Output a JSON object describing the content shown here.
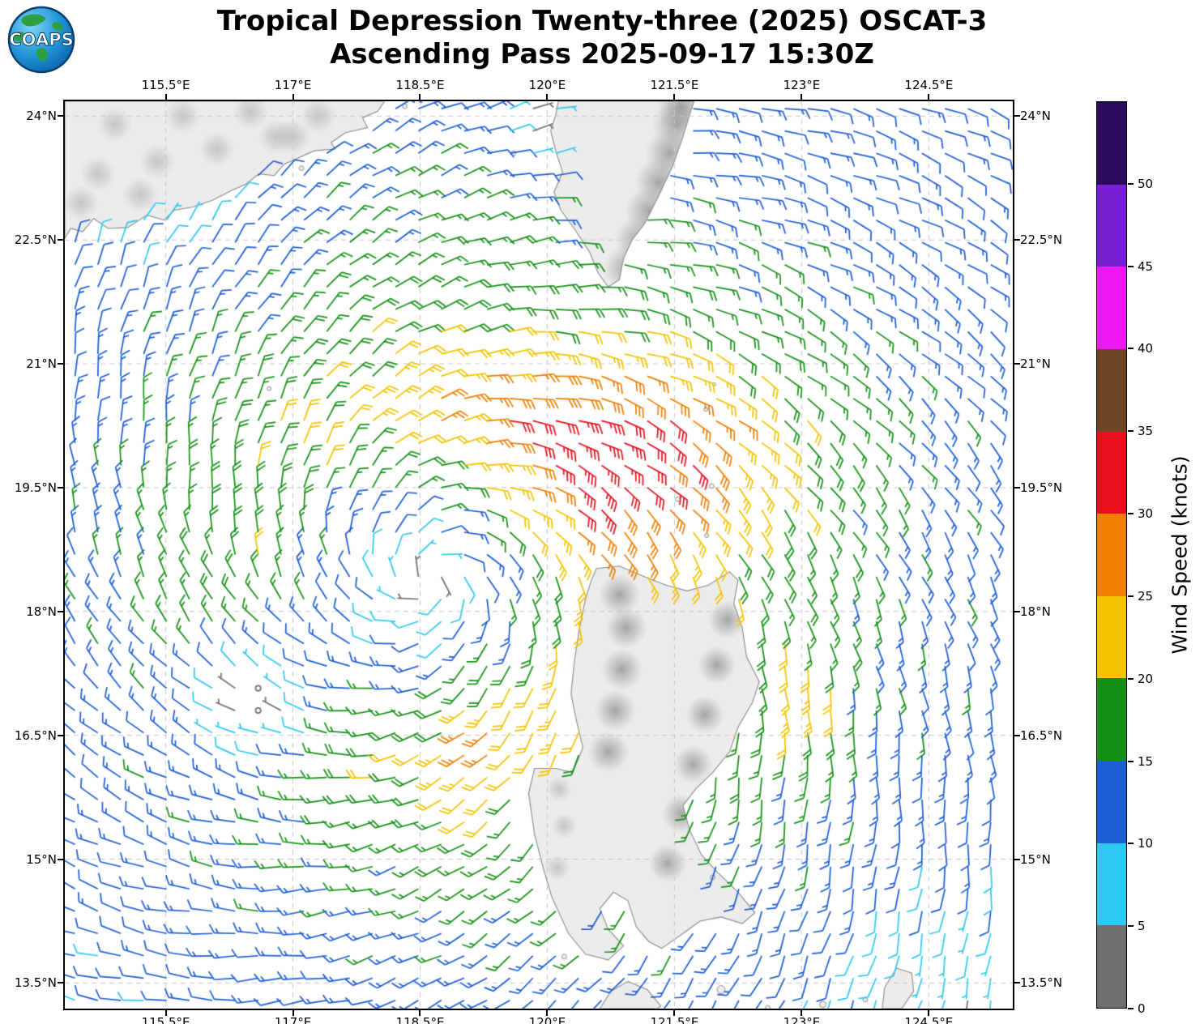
{
  "logo": {
    "text": "COAPS",
    "globe_color": "#1d7fc4",
    "land_color": "#2f9e41"
  },
  "title": {
    "line1": "Tropical Depression Twenty-three (2025) OSCAT-3",
    "line2": "Ascending Pass 2025-09-17 15:30Z"
  },
  "chart_data": {
    "type": "wind_barb_map",
    "projection": "lon-lat",
    "x_axis": {
      "range": [
        114.31,
        125.49
      ],
      "ticks": [
        115.5,
        117,
        118.5,
        120,
        121.5,
        123,
        124.5
      ],
      "tick_labels": [
        "115.5°E",
        "117°E",
        "118.5°E",
        "120°E",
        "121.5°E",
        "123°E",
        "124.5°E"
      ]
    },
    "y_axis": {
      "range": [
        13.19,
        24.18
      ],
      "ticks": [
        24,
        22.5,
        21,
        19.5,
        18,
        16.5,
        15,
        13.5
      ],
      "tick_labels": [
        "24°N",
        "22.5°N",
        "21°N",
        "19.5°N",
        "18°N",
        "16.5°N",
        "15°N",
        "13.5°N"
      ]
    },
    "grid": {
      "visible": true,
      "style": "dashed",
      "color": "#c8c8c8"
    },
    "colorbar": {
      "label": "Wind Speed (knots)",
      "levels": [
        0,
        5,
        10,
        15,
        20,
        25,
        30,
        35,
        40,
        45,
        50,
        55
      ],
      "tick_labels": [
        "0",
        "5",
        "10",
        "15",
        "20",
        "25",
        "30",
        "35",
        "40",
        "45",
        "50"
      ],
      "colors": [
        "#6f6f6f",
        "#2ec9f2",
        "#1c5dd6",
        "#149114",
        "#f5c400",
        "#f07f00",
        "#e8101f",
        "#6e4526",
        "#f018f0",
        "#7a1fd4",
        "#2e0a5e"
      ]
    },
    "wind_field": {
      "description": "OSCAT-3 scatterometer ocean wind barbs (knots); cyclonic circulation of Tropical Depression 23 over the Luzon Strait / South China Sea",
      "storm_center_estimate": {
        "lon": 118.6,
        "lat": 18.4
      },
      "max_wind_region": {
        "lon": [
          120.2,
          121.5
        ],
        "lat": [
          19.4,
          20.4
        ],
        "speed_band_kt": [
          30,
          35
        ]
      },
      "model": {
        "center": [
          118.6,
          18.4
        ],
        "rmax_deg": 2.2,
        "vmax_kt": 22,
        "inner_exp": 0.7,
        "outer_decay_exp": 0.55,
        "inflow_deg": 25,
        "asym": {
          "amp": 0.12,
          "dir_deg": 20
        },
        "jets": [
          {
            "lon": 121.0,
            "lat": 20.0,
            "amp_kt": 12,
            "sx": 1.9,
            "sy": 1.1
          },
          {
            "lon": 123.0,
            "lat": 16.9,
            "amp_kt": 8,
            "sx": 0.5,
            "sy": 0.6
          },
          {
            "lon": 119.1,
            "lat": 16.6,
            "amp_kt": 6,
            "sx": 0.35,
            "sy": 1.0
          }
        ],
        "calm_zones": [
          {
            "lon": 116.6,
            "lat": 16.9,
            "r": 0.75,
            "damp": 0.93
          },
          {
            "lon": 119.95,
            "lat": 23.85,
            "r": 0.55,
            "damp": 0.8
          },
          {
            "lon": 124.7,
            "lat": 13.3,
            "r": 1.3,
            "damp": 0.5
          },
          {
            "lon": 115.6,
            "lat": 22.95,
            "r": 1.0,
            "damp": 0.45
          }
        ],
        "noise": {
          "speed_kt": 1.8,
          "dir_deg": 8
        },
        "grid_step_deg": 0.27,
        "max_display_kt": 34.5
      }
    },
    "geography": {
      "land_fill": "#ececec",
      "coast_color": "#8a8a8a",
      "polygons": {
        "china": [
          [
            114.31,
            24.18
          ],
          [
            118.08,
            24.18
          ],
          [
            118.0,
            24.06
          ],
          [
            117.82,
            23.98
          ],
          [
            117.88,
            23.86
          ],
          [
            117.62,
            23.8
          ],
          [
            117.45,
            23.68
          ],
          [
            117.5,
            23.6
          ],
          [
            117.25,
            23.58
          ],
          [
            117.08,
            23.5
          ],
          [
            116.9,
            23.42
          ],
          [
            116.78,
            23.28
          ],
          [
            116.6,
            23.3
          ],
          [
            116.45,
            23.18
          ],
          [
            116.28,
            23.1
          ],
          [
            116.05,
            22.98
          ],
          [
            115.82,
            22.9
          ],
          [
            115.6,
            22.86
          ],
          [
            115.48,
            22.74
          ],
          [
            115.28,
            22.8
          ],
          [
            115.05,
            22.65
          ],
          [
            114.82,
            22.64
          ],
          [
            114.65,
            22.76
          ],
          [
            114.52,
            22.6
          ],
          [
            114.38,
            22.64
          ],
          [
            114.31,
            22.52
          ]
        ],
        "taiwan": [
          [
            120.72,
            21.93
          ],
          [
            120.6,
            22.1
          ],
          [
            120.5,
            22.35
          ],
          [
            120.33,
            22.62
          ],
          [
            120.16,
            22.86
          ],
          [
            120.08,
            23.08
          ],
          [
            120.18,
            23.32
          ],
          [
            120.1,
            23.58
          ],
          [
            120.04,
            23.82
          ],
          [
            120.1,
            24.02
          ],
          [
            120.13,
            24.18
          ],
          [
            121.73,
            24.18
          ],
          [
            121.68,
            24.02
          ],
          [
            121.6,
            23.75
          ],
          [
            121.48,
            23.4
          ],
          [
            121.32,
            23.05
          ],
          [
            121.15,
            22.7
          ],
          [
            121.0,
            22.5
          ],
          [
            120.9,
            22.28
          ],
          [
            120.85,
            22.02
          ]
        ],
        "luzon": [
          [
            120.58,
            18.52
          ],
          [
            120.85,
            18.55
          ],
          [
            121.15,
            18.42
          ],
          [
            121.4,
            18.32
          ],
          [
            121.65,
            18.25
          ],
          [
            121.9,
            18.32
          ],
          [
            122.15,
            18.48
          ],
          [
            122.25,
            18.38
          ],
          [
            122.2,
            18.1
          ],
          [
            122.3,
            17.8
          ],
          [
            122.35,
            17.45
          ],
          [
            122.5,
            17.15
          ],
          [
            122.42,
            16.9
          ],
          [
            122.25,
            16.6
          ],
          [
            122.15,
            16.3
          ],
          [
            121.95,
            16.05
          ],
          [
            121.75,
            15.85
          ],
          [
            121.6,
            15.65
          ],
          [
            121.68,
            15.35
          ],
          [
            121.82,
            15.05
          ],
          [
            122.0,
            14.85
          ],
          [
            122.25,
            14.6
          ],
          [
            122.45,
            14.35
          ],
          [
            122.3,
            14.22
          ],
          [
            122.05,
            14.3
          ],
          [
            121.8,
            14.25
          ],
          [
            121.6,
            14.1
          ],
          [
            121.35,
            13.92
          ],
          [
            121.2,
            14.0
          ],
          [
            121.05,
            14.18
          ],
          [
            120.95,
            14.5
          ],
          [
            120.78,
            14.6
          ],
          [
            120.62,
            14.4
          ],
          [
            120.72,
            14.15
          ],
          [
            120.9,
            13.95
          ],
          [
            120.72,
            13.78
          ],
          [
            120.45,
            13.85
          ],
          [
            120.25,
            14.1
          ],
          [
            120.05,
            14.55
          ],
          [
            119.95,
            14.9
          ],
          [
            119.85,
            15.3
          ],
          [
            119.78,
            15.8
          ],
          [
            119.85,
            16.1
          ],
          [
            120.1,
            16.1
          ],
          [
            120.3,
            16.05
          ],
          [
            120.42,
            16.35
          ],
          [
            120.35,
            16.65
          ],
          [
            120.28,
            17.0
          ],
          [
            120.32,
            17.4
          ],
          [
            120.38,
            17.8
          ],
          [
            120.45,
            18.15
          ],
          [
            120.52,
            18.38
          ]
        ],
        "mindoro": [
          [
            120.62,
            13.19
          ],
          [
            120.75,
            13.4
          ],
          [
            120.95,
            13.52
          ],
          [
            121.18,
            13.42
          ],
          [
            121.34,
            13.22
          ],
          [
            121.3,
            13.19
          ]
        ],
        "catanduanes": [
          [
            123.95,
            13.19
          ],
          [
            123.98,
            13.45
          ],
          [
            124.12,
            13.68
          ],
          [
            124.3,
            13.62
          ],
          [
            124.32,
            13.4
          ],
          [
            124.18,
            13.19
          ]
        ]
      },
      "islets": [
        [
          119.6,
          23.55,
          3
        ],
        [
          118.32,
          24.12,
          3
        ],
        [
          117.1,
          23.37,
          3
        ],
        [
          116.72,
          20.7,
          2.5
        ],
        [
          121.54,
          19.36,
          3
        ],
        [
          121.94,
          19.52,
          3
        ],
        [
          121.88,
          18.92,
          2.5
        ],
        [
          121.87,
          20.45,
          2.5
        ],
        [
          121.97,
          20.75,
          2
        ],
        [
          121.95,
          14.78,
          3
        ],
        [
          122.05,
          13.42,
          5
        ],
        [
          120.2,
          13.82,
          3
        ],
        [
          123.25,
          13.24,
          4
        ],
        [
          123.75,
          13.3,
          3
        ],
        [
          122.6,
          13.2,
          3
        ]
      ],
      "terrain": {
        "taiwan_ridge": [
          [
            120.95,
            22.15
          ],
          [
            121.08,
            22.5
          ],
          [
            121.2,
            22.85
          ],
          [
            121.32,
            23.2
          ],
          [
            121.44,
            23.55
          ],
          [
            121.52,
            23.9
          ],
          [
            121.58,
            24.12
          ]
        ],
        "luzon_cordillera": [
          [
            120.72,
            16.3
          ],
          [
            120.8,
            16.8
          ],
          [
            120.88,
            17.3
          ],
          [
            120.93,
            17.8
          ],
          [
            120.85,
            18.2
          ]
        ],
        "luzon_sierra_madre": [
          [
            121.42,
            14.95
          ],
          [
            121.58,
            15.55
          ],
          [
            121.72,
            16.15
          ],
          [
            121.86,
            16.75
          ],
          [
            122.0,
            17.35
          ],
          [
            122.12,
            17.9
          ]
        ],
        "luzon_zambales": [
          [
            120.12,
            14.9
          ],
          [
            120.2,
            15.4
          ],
          [
            120.14,
            15.85
          ]
        ],
        "china_hills": [
          [
            114.7,
            23.3
          ],
          [
            115.4,
            23.45
          ],
          [
            116.1,
            23.6
          ],
          [
            116.8,
            23.75
          ],
          [
            114.9,
            23.9
          ],
          [
            115.7,
            24.0
          ],
          [
            116.5,
            24.05
          ],
          [
            117.3,
            24.0
          ],
          [
            114.5,
            22.95
          ],
          [
            115.2,
            23.05
          ],
          [
            117.0,
            23.75
          ]
        ]
      }
    }
  }
}
